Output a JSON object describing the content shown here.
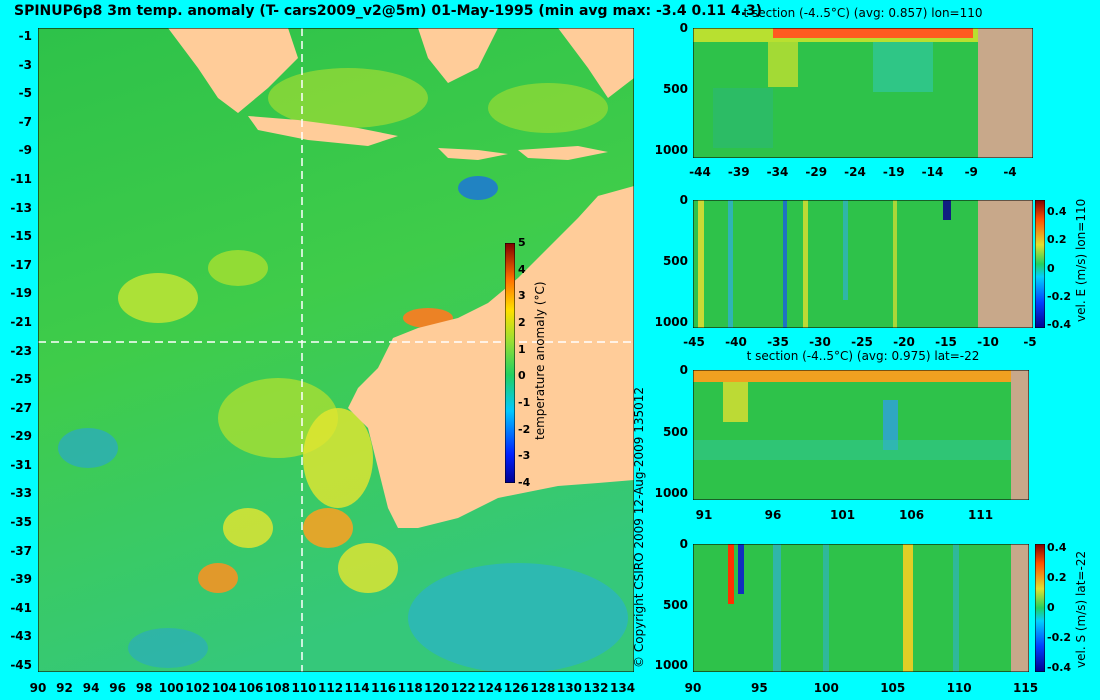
{
  "title": "SPINUP6p8 3m temp. anomaly (T- cars2009_v2@5m) 01-May-1995 (min avg max: -3.4 0.11 4.3)",
  "copyright": "© Copyright CSIRO 2009   12-Aug-2009 135012",
  "colors": {
    "background": "#00ffff",
    "land": "#ffcc99",
    "section_land": "#c8a88a",
    "ocean": "#22c24a",
    "crosshair": "#ffffff"
  },
  "chart_data": [
    {
      "type": "heatmap",
      "name": "main-map",
      "xticks": [
        "90",
        "92",
        "94",
        "96",
        "98",
        "100",
        "102",
        "104",
        "106",
        "108",
        "110",
        "112",
        "114",
        "116",
        "118",
        "120",
        "122",
        "124",
        "126",
        "128",
        "130",
        "132",
        "134"
      ],
      "yticks": [
        "-1",
        "-3",
        "-5",
        "-7",
        "-9",
        "-11",
        "-13",
        "-15",
        "-17",
        "-19",
        "-21",
        "-23",
        "-25",
        "-27",
        "-29",
        "-31",
        "-33",
        "-35",
        "-37",
        "-39",
        "-41",
        "-43",
        "-45"
      ],
      "xlim": [
        89.8,
        135
      ],
      "ylim": [
        -45,
        0.2
      ],
      "crosshair": {
        "lon": 110,
        "lat": -22
      },
      "colorbar": {
        "label": "temperature anomaly (°C)",
        "ticks": [
          "5",
          "4",
          "3",
          "2",
          "1",
          "0",
          "-1",
          "-2",
          "-3",
          "-4"
        ],
        "range": [
          -4,
          5
        ]
      }
    },
    {
      "type": "heatmap",
      "name": "t-section-lon110",
      "title": "t section (-4..5°C) (avg: 0.857) lon=110",
      "xticks": [
        "-44",
        "-39",
        "-34",
        "-29",
        "-24",
        "-19",
        "-14",
        "-9",
        "-4"
      ],
      "yticks": [
        "0",
        "500",
        "1000"
      ]
    },
    {
      "type": "heatmap",
      "name": "vel-e-section-lon110",
      "xticks": [
        "-45",
        "-40",
        "-35",
        "-30",
        "-25",
        "-20",
        "-15",
        "-10",
        "-5"
      ],
      "yticks": [
        "0",
        "500",
        "1000"
      ],
      "colorbar": {
        "label": "vel. E (m/s) lon=110",
        "ticks": [
          "0.4",
          "0.2",
          "0",
          "-0.2",
          "-0.4"
        ],
        "range": [
          -0.4,
          0.4
        ]
      }
    },
    {
      "type": "heatmap",
      "name": "t-section-lat-22",
      "title": "t section (-4..5°C) (avg: 0.975) lat=-22",
      "xticks": [
        "91",
        "96",
        "101",
        "106",
        "111"
      ],
      "yticks": [
        "0",
        "500",
        "1000"
      ]
    },
    {
      "type": "heatmap",
      "name": "vel-s-section-lat-22",
      "xticks": [
        "90",
        "95",
        "100",
        "105",
        "110",
        "115"
      ],
      "yticks": [
        "0",
        "500",
        "1000"
      ],
      "colorbar": {
        "label": "vel. S (m/s) lat=-22",
        "ticks": [
          "0.4",
          "0.2",
          "0",
          "-0.2",
          "-0.4"
        ],
        "range": [
          -0.4,
          0.4
        ]
      }
    }
  ]
}
